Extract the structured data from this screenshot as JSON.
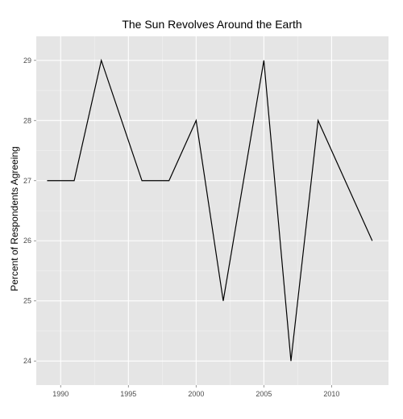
{
  "chart_data": {
    "type": "line",
    "title": "The Sun Revolves Around the Earth",
    "xlabel": "",
    "ylabel": "Percent of Respondents Agreeing",
    "xlim": [
      1988.2,
      2014.2
    ],
    "ylim": [
      23.6,
      29.4
    ],
    "xticks": [
      1990,
      1995,
      2000,
      2005,
      2010
    ],
    "yticks": [
      24,
      25,
      26,
      27,
      28,
      29
    ],
    "grid": true,
    "colors": {
      "panel": "#e5e5e5",
      "grid": "#ffffff",
      "line": "#000000"
    },
    "series": [
      {
        "x": [
          1989,
          1991,
          1993,
          1996,
          1998,
          2000,
          2002,
          2005,
          2007,
          2009,
          2013
        ],
        "values": [
          27,
          27,
          29,
          27,
          27,
          28,
          25,
          29,
          24,
          28,
          26
        ]
      }
    ]
  }
}
